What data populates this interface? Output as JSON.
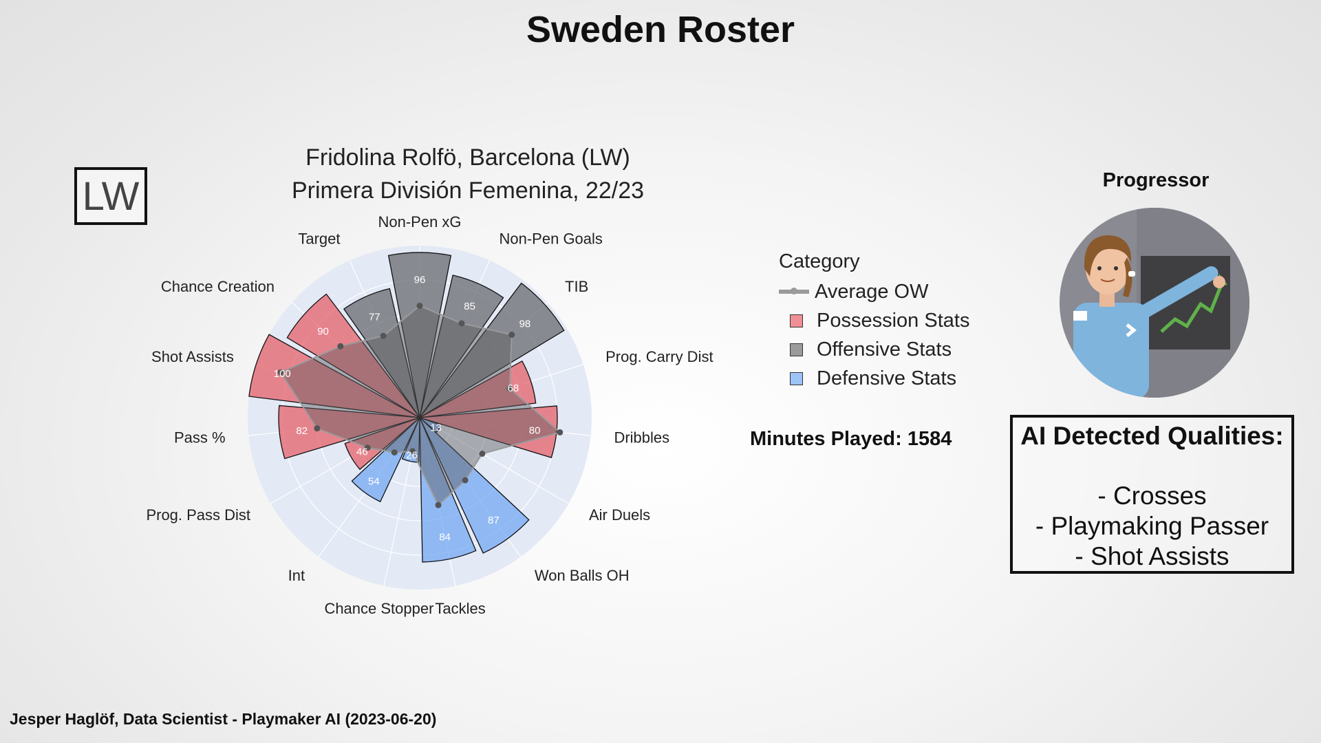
{
  "page": {
    "title": "Sweden Roster",
    "position_badge": "LW",
    "footer": "Jesper Haglöf, Data Scientist - Playmaker AI (2023-06-20)"
  },
  "chart_data": {
    "type": "radar-bar",
    "title": "Fridolina Rolfö, Barcelona (LW)",
    "subtitle": "Primera División Femenina, 22/23",
    "rmax": 100,
    "grid": true,
    "legend_title": "Category",
    "legend_position": "right",
    "legend": [
      {
        "name": "Average OW",
        "kind": "line",
        "color": "#9a9a9a"
      },
      {
        "name": "Possession Stats",
        "kind": "box",
        "color": "#f08f96"
      },
      {
        "name": "Offensive Stats",
        "kind": "box",
        "color": "#9b9b9b"
      },
      {
        "name": "Defensive Stats",
        "kind": "box",
        "color": "#9dc3f7"
      }
    ],
    "colors": {
      "Possession Stats": "#e66670",
      "Offensive Stats": "#6e6f74",
      "Defensive Stats": "#78acf4",
      "Average OW": "#5a5a5e",
      "background": "#e3e9f5"
    },
    "categories": [
      "Non-Pen xG",
      "Non-Pen Goals",
      "TIB",
      "Prog. Carry Dist",
      "Dribbles",
      "Air Duels",
      "Won Balls OH",
      "Tackles",
      "Chance Stopper",
      "Int",
      "Prog. Pass Dist",
      "Pass %",
      "Shot Assists",
      "Chance Creation",
      "Target"
    ],
    "values": [
      96,
      85,
      98,
      68,
      80,
      13,
      87,
      84,
      26,
      54,
      46,
      82,
      100,
      90,
      77
    ],
    "groups": [
      "Offensive Stats",
      "Offensive Stats",
      "Offensive Stats",
      "Possession Stats",
      "Possession Stats",
      "Defensive Stats",
      "Defensive Stats",
      "Defensive Stats",
      "Defensive Stats",
      "Defensive Stats",
      "Possession Stats",
      "Possession Stats",
      "Possession Stats",
      "Possession Stats",
      "Offensive Stats"
    ],
    "average_ow": [
      65,
      60,
      72,
      55,
      82,
      42,
      45,
      52,
      20,
      25,
      35,
      60,
      85,
      62,
      52
    ]
  },
  "stats": {
    "minutes_played": "Minutes Played: 1584"
  },
  "archetype": {
    "label": "Progressor",
    "avatar_icon": "progressor-avatar-icon"
  },
  "qualities": {
    "title": "AI Detected Qualities:",
    "items": [
      "- Crosses",
      "- Playmaking Passer",
      "- Shot Assists"
    ]
  }
}
